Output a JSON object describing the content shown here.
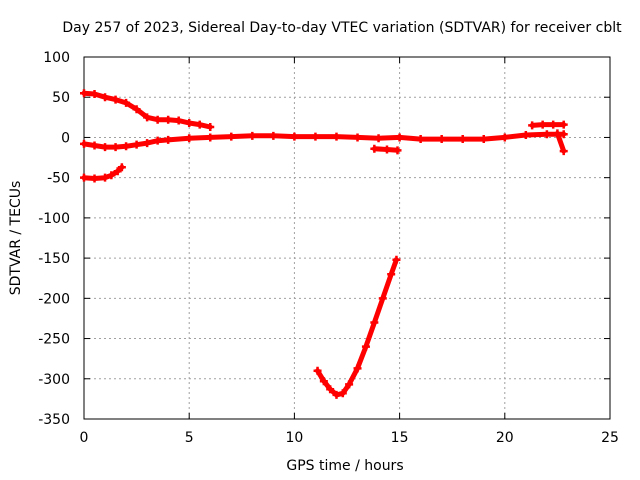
{
  "chart_data": {
    "type": "scatter",
    "title": "Day 257 of 2023, Sidereal Day-to-day VTEC variation (SDTVAR) for receiver cblt",
    "xlabel": "GPS time / hours",
    "ylabel": "SDTVAR / TECUs",
    "xlim": [
      0,
      25
    ],
    "ylim": [
      -350,
      100
    ],
    "x_ticks": [
      "0",
      "5",
      "10",
      "15",
      "20",
      "25"
    ],
    "y_ticks": [
      "100",
      "50",
      "0",
      "-50",
      "-100",
      "-150",
      "-200",
      "-250",
      "-300",
      "-350"
    ],
    "grid": true,
    "color": "#ff0000",
    "series": [
      {
        "name": "track-upper",
        "points": [
          [
            0,
            55
          ],
          [
            0.5,
            54
          ],
          [
            1,
            50
          ],
          [
            1.5,
            47
          ],
          [
            2,
            43
          ],
          [
            2.5,
            35
          ],
          [
            3,
            25
          ],
          [
            3.5,
            22
          ],
          [
            4,
            22
          ],
          [
            4.5,
            21
          ],
          [
            5,
            18
          ],
          [
            5.5,
            16
          ],
          [
            6,
            13
          ]
        ]
      },
      {
        "name": "track-main",
        "points": [
          [
            0,
            -8
          ],
          [
            0.5,
            -10
          ],
          [
            1,
            -12
          ],
          [
            1.5,
            -12
          ],
          [
            2,
            -11
          ],
          [
            2.5,
            -9
          ],
          [
            3,
            -7
          ],
          [
            3.5,
            -4
          ],
          [
            4,
            -3
          ],
          [
            5,
            -1
          ],
          [
            6,
            0
          ],
          [
            7,
            1
          ],
          [
            8,
            2
          ],
          [
            9,
            2
          ],
          [
            10,
            1
          ],
          [
            11,
            1
          ],
          [
            12,
            1
          ],
          [
            13,
            0
          ],
          [
            14,
            -1
          ],
          [
            15,
            0
          ],
          [
            16,
            -2
          ],
          [
            17,
            -2
          ],
          [
            18,
            -2
          ],
          [
            19,
            -2
          ],
          [
            20,
            0
          ],
          [
            21,
            3
          ],
          [
            22,
            4
          ],
          [
            22.8,
            4
          ]
        ]
      },
      {
        "name": "track-lower",
        "points": [
          [
            0,
            -50
          ],
          [
            0.5,
            -51
          ],
          [
            1,
            -50
          ],
          [
            1.3,
            -47
          ],
          [
            1.6,
            -42
          ],
          [
            1.8,
            -37
          ]
        ]
      },
      {
        "name": "track-late-a",
        "points": [
          [
            13.8,
            -14
          ],
          [
            14.4,
            -15
          ],
          [
            14.9,
            -16
          ]
        ]
      },
      {
        "name": "track-late-b",
        "points": [
          [
            21.3,
            15
          ],
          [
            21.8,
            16
          ],
          [
            22.3,
            16
          ],
          [
            22.8,
            16
          ]
        ]
      },
      {
        "name": "track-late-c",
        "points": [
          [
            22.5,
            5
          ],
          [
            22.8,
            -17
          ]
        ]
      },
      {
        "name": "track-dip",
        "points": [
          [
            11.1,
            -290
          ],
          [
            11.4,
            -303
          ],
          [
            11.7,
            -313
          ],
          [
            12,
            -320
          ],
          [
            12.3,
            -318
          ],
          [
            12.6,
            -307
          ],
          [
            13,
            -287
          ],
          [
            13.4,
            -260
          ],
          [
            13.8,
            -230
          ],
          [
            14.2,
            -200
          ],
          [
            14.6,
            -170
          ],
          [
            14.85,
            -152
          ]
        ]
      }
    ]
  }
}
